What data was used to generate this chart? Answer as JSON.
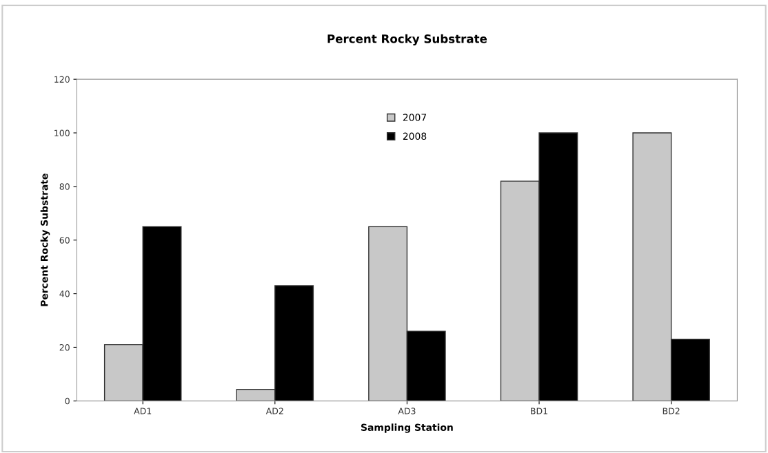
{
  "chart_data": {
    "type": "bar",
    "title": "Percent Rocky Substrate",
    "xlabel": "Sampling Station",
    "ylabel": "Percent Rocky Substrate",
    "categories": [
      "AD1",
      "AD2",
      "AD3",
      "BD1",
      "BD2"
    ],
    "series": [
      {
        "name": "2007",
        "color": "#c8c8c8",
        "values": [
          21,
          4.3,
          65,
          82,
          100
        ]
      },
      {
        "name": "2008",
        "color": "#000000",
        "values": [
          65,
          43,
          26,
          100,
          23
        ]
      }
    ],
    "ylim": [
      0,
      120
    ],
    "yticks": [
      0,
      20,
      40,
      60,
      80,
      100,
      120
    ],
    "grid": false,
    "legend": "top"
  }
}
